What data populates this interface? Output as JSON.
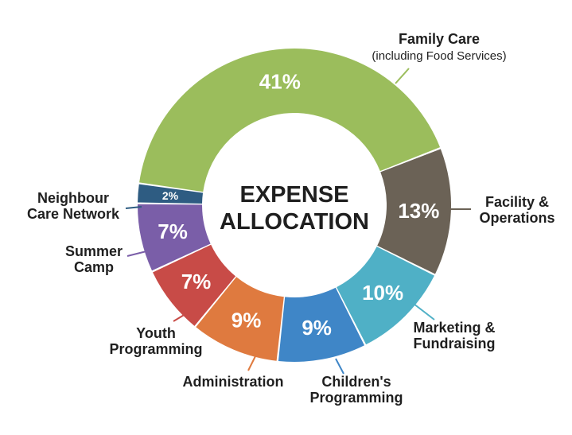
{
  "chart_data": {
    "type": "pie",
    "title": "EXPENSE\nALLOCATION",
    "donut": true,
    "start_clockwise_from": "Family Care",
    "slices": [
      {
        "name": "Family Care\n(including Food Services)",
        "value": 41,
        "label": "41%",
        "color": "#9bbd5c"
      },
      {
        "name": "Facility &\nOperations",
        "value": 13,
        "label": "13%",
        "color": "#6b6256"
      },
      {
        "name": "Marketing &\nFundraising",
        "value": 10,
        "label": "10%",
        "color": "#4fb0c6"
      },
      {
        "name": "Children's\nProgramming",
        "value": 9,
        "label": "9%",
        "color": "#3f86c7"
      },
      {
        "name": "Administration",
        "value": 9,
        "label": "9%",
        "color": "#df7a3f"
      },
      {
        "name": "Youth\nProgramming",
        "value": 7,
        "label": "7%",
        "color": "#c84b47"
      },
      {
        "name": "Summer\nCamp",
        "value": 7,
        "label": "7%",
        "color": "#7a5ea8"
      },
      {
        "name": "Neighbour\nCare Network",
        "value": 2,
        "label": "2%",
        "color": "#2e5c82"
      }
    ]
  }
}
